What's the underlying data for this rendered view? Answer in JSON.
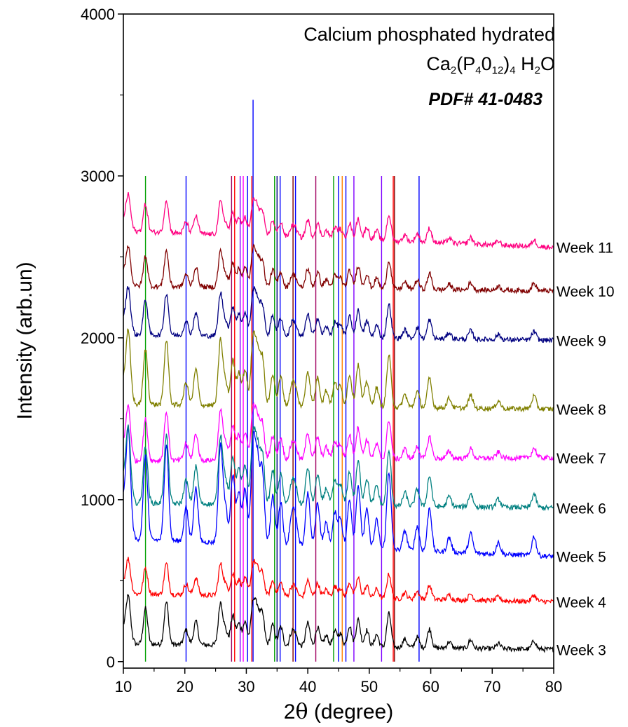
{
  "chart_data": {
    "type": "line",
    "title_lines": [
      "Calcium phosphated hydrated",
      "PDF# 41-0483"
    ],
    "formula": {
      "base": "Ca",
      "s1": "2",
      "p1": "(P",
      "s2": "4",
      "p2": "0",
      "s3": "12",
      "p3": ")",
      "s4": "4",
      "p4": " H",
      "s5": "2",
      "p5": "O"
    },
    "xlabel_prefix": "2",
    "xlabel_symbol": "θ",
    "xlabel_suffix": " (degree)",
    "ylabel": "Intensity (arb.un)",
    "xlim": [
      10,
      80
    ],
    "ylim": [
      -40,
      4000
    ],
    "x_ticks": [
      "10",
      "20",
      "30",
      "40",
      "50",
      "60",
      "70",
      "80"
    ],
    "y_ticks": [
      "0",
      "1000",
      "2000",
      "3000",
      "4000"
    ],
    "grid": false,
    "peak_positions": [
      10.8,
      13.6,
      17.0,
      20.2,
      21.8,
      25.8,
      26.6,
      27.8,
      28.8,
      29.8,
      31.1,
      31.8,
      32.6,
      34.3,
      35.6,
      37.4,
      38.0,
      40.0,
      41.6,
      43.0,
      44.4,
      45.3,
      46.8,
      48.2,
      49.6,
      51.2,
      53.2,
      55.8,
      57.8,
      59.8,
      63.0,
      66.5,
      71.0,
      76.8
    ],
    "peak_heights": [
      0.9,
      0.85,
      1.0,
      0.35,
      0.55,
      1.0,
      0.35,
      0.7,
      0.5,
      0.55,
      1.0,
      0.8,
      0.75,
      0.5,
      0.45,
      0.3,
      0.25,
      0.55,
      0.45,
      0.25,
      0.35,
      0.3,
      0.5,
      0.65,
      0.4,
      0.3,
      0.8,
      0.2,
      0.25,
      0.45,
      0.15,
      0.2,
      0.12,
      0.2
    ],
    "series": [
      {
        "name": "Week 3",
        "color": "#000000",
        "baseline": 110,
        "end": 75,
        "scale": 260
      },
      {
        "name": "Week 4",
        "color": "#ff0000",
        "baseline": 420,
        "end": 370,
        "scale": 190
      },
      {
        "name": "Week 5",
        "color": "#0000ff",
        "baseline": 760,
        "end": 650,
        "scale": 600
      },
      {
        "name": "Week 6",
        "color": "#008080",
        "baseline": 980,
        "end": 950,
        "scale": 420
      },
      {
        "name": "Week 7",
        "color": "#ff00ff",
        "baseline": 1240,
        "end": 1260,
        "scale": 300
      },
      {
        "name": "Week 8",
        "color": "#808000",
        "baseline": 1590,
        "end": 1560,
        "scale": 400
      },
      {
        "name": "Week 9",
        "color": "#000080",
        "baseline": 2020,
        "end": 1985,
        "scale": 260
      },
      {
        "name": "Week 10",
        "color": "#800000",
        "baseline": 2320,
        "end": 2290,
        "scale": 220
      },
      {
        "name": "Week 11",
        "color": "#ff0080",
        "baseline": 2660,
        "end": 2560,
        "scale": 200
      }
    ],
    "reference_lines": [
      {
        "x": 13.6,
        "top": 3000,
        "color": "#00a000"
      },
      {
        "x": 20.2,
        "top": 3000,
        "color": "#0000ff"
      },
      {
        "x": 27.6,
        "top": 3000,
        "color": "#a00060"
      },
      {
        "x": 28.1,
        "top": 3000,
        "color": "#ff0000"
      },
      {
        "x": 29.0,
        "top": 3000,
        "color": "#8000ff"
      },
      {
        "x": 29.5,
        "top": 3000,
        "color": "#ff00ff"
      },
      {
        "x": 30.2,
        "top": 3000,
        "color": "#0000ff"
      },
      {
        "x": 30.9,
        "top": 3000,
        "color": "#ff0000"
      },
      {
        "x": 31.1,
        "top": 3470,
        "color": "#0000ff"
      },
      {
        "x": 34.6,
        "top": 3000,
        "color": "#00a000"
      },
      {
        "x": 35.0,
        "top": 3000,
        "color": "#000080"
      },
      {
        "x": 35.5,
        "top": 3000,
        "color": "#0000ff"
      },
      {
        "x": 37.6,
        "top": 3000,
        "color": "#800000"
      },
      {
        "x": 38.0,
        "top": 3000,
        "color": "#0000ff"
      },
      {
        "x": 41.3,
        "top": 3000,
        "color": "#a00060"
      },
      {
        "x": 44.2,
        "top": 3000,
        "color": "#00a000"
      },
      {
        "x": 45.0,
        "top": 3000,
        "color": "#0000ff"
      },
      {
        "x": 45.6,
        "top": 3000,
        "color": "#ff8000"
      },
      {
        "x": 46.2,
        "top": 3000,
        "color": "#0000ff"
      },
      {
        "x": 47.5,
        "top": 3000,
        "color": "#8000ff"
      },
      {
        "x": 52.0,
        "top": 3000,
        "color": "#8000ff"
      },
      {
        "x": 53.9,
        "top": 3000,
        "color": "#ff0000"
      },
      {
        "x": 54.1,
        "top": 3000,
        "color": "#800000"
      },
      {
        "x": 58.1,
        "top": 3000,
        "color": "#0000ff"
      }
    ]
  }
}
